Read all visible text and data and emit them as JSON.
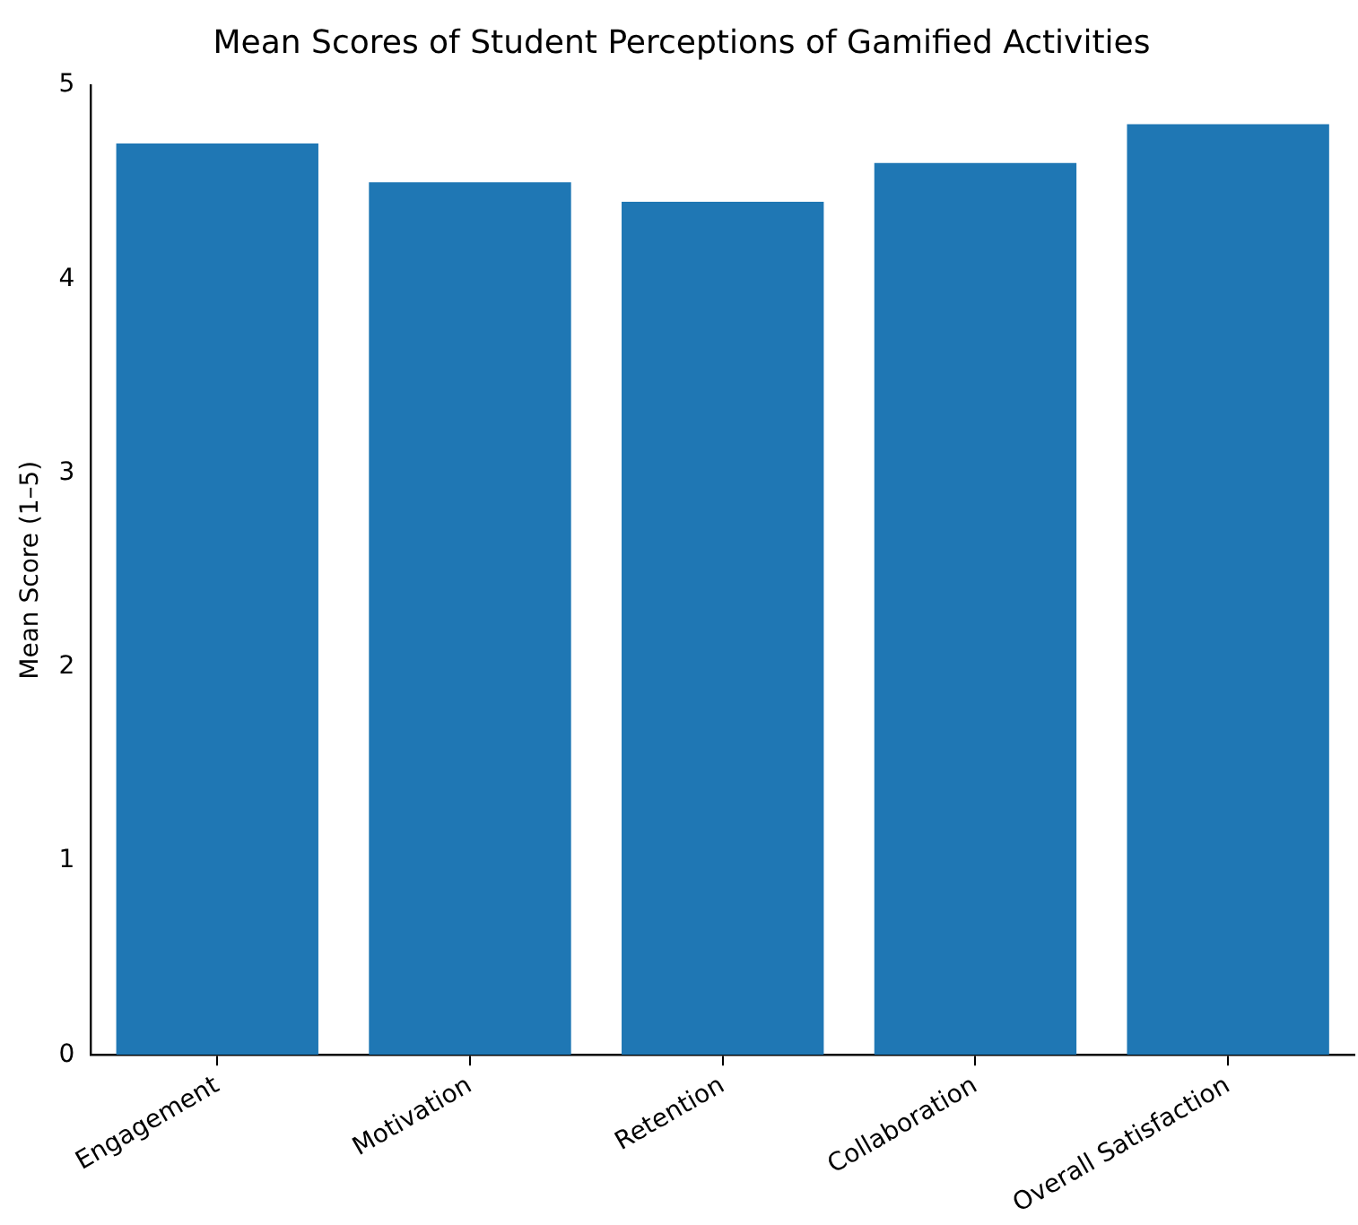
{
  "chart_data": {
    "type": "bar",
    "title": "Mean Scores of Student Perceptions of Gamified Activities",
    "ylabel": "Mean Score (1–5)",
    "categories": [
      "Engagement",
      "Motivation",
      "Retention",
      "Collaboration",
      "Overall Satisfaction"
    ],
    "values": [
      4.7,
      4.5,
      4.4,
      4.6,
      4.8
    ],
    "color": "#1f77b4",
    "ylim": [
      0,
      5
    ],
    "yticks": [
      0,
      1,
      2,
      3,
      4,
      5
    ],
    "grid": false,
    "legend": false
  }
}
